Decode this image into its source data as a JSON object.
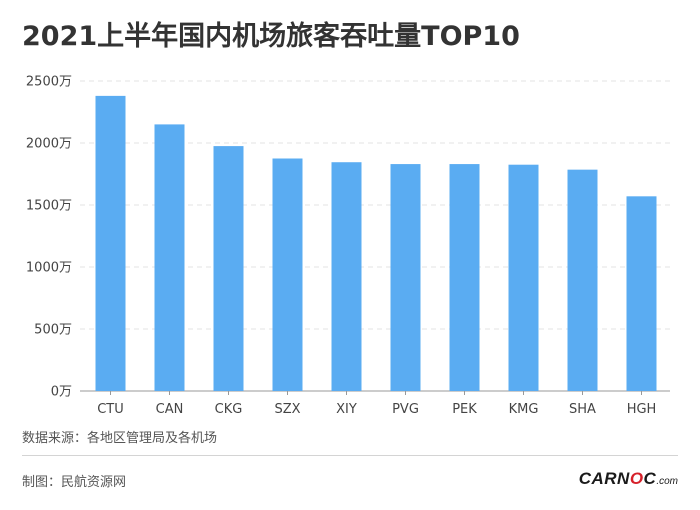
{
  "chart_data": {
    "type": "bar",
    "title": "2021上半年国内机场旅客吞吐量TOP10",
    "categories": [
      "CTU",
      "CAN",
      "CKG",
      "SZX",
      "XIY",
      "PVG",
      "PEK",
      "KMG",
      "SHA",
      "HGH"
    ],
    "values": [
      2380,
      2150,
      1975,
      1875,
      1845,
      1830,
      1830,
      1825,
      1785,
      1570
    ],
    "unit": "万",
    "ylim": [
      0,
      2500
    ],
    "yticks": [
      0,
      500,
      1000,
      1500,
      2000,
      2500
    ],
    "ytick_labels": [
      "0万",
      "500万",
      "1000万",
      "1500万",
      "2000万",
      "2500万"
    ],
    "xlabel": "",
    "ylabel": "",
    "grid": true,
    "bar_color": "#5aacf2"
  },
  "footer": {
    "source": "数据来源：各地区管理局及各机场",
    "credit": "制图：民航资源网"
  },
  "logo": {
    "brand": "CARNOC",
    "suffix": ".com",
    "accent_color": "#d6202a"
  }
}
